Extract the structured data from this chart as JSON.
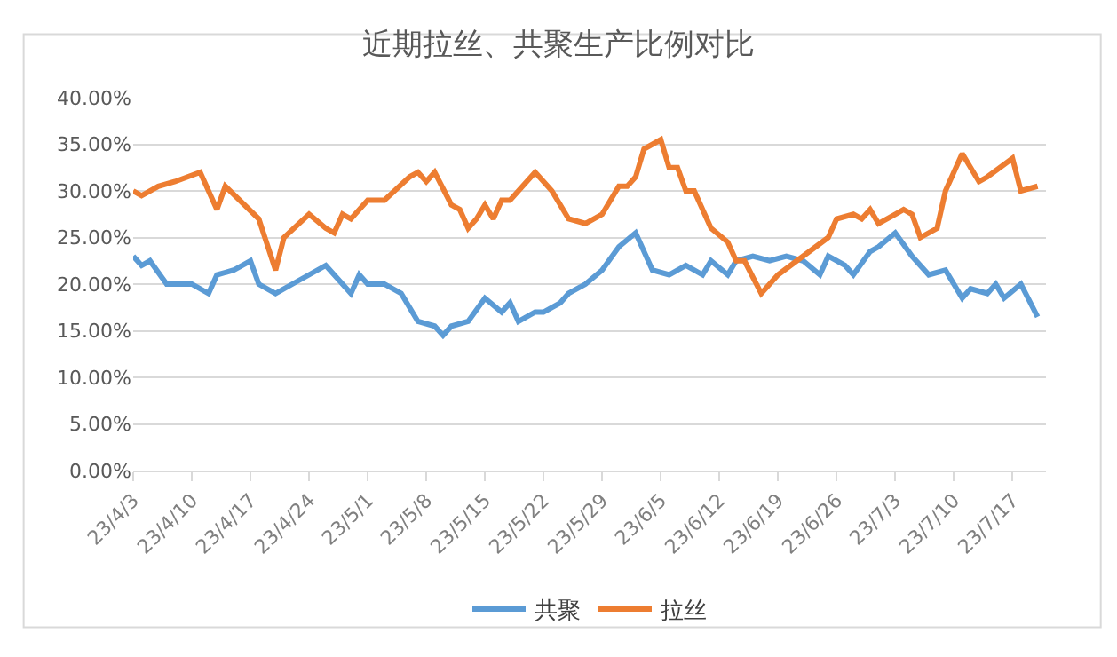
{
  "chart_data": {
    "type": "line",
    "title": "近期拉丝、共聚生产比例对比",
    "series": [
      {
        "name": "共聚",
        "color": "#5b9bd5",
        "x": [
          "--04-03",
          "--04-04",
          "--04-05",
          "--04-07",
          "--04-10",
          "--04-12",
          "--04-13",
          "--04-15",
          "--04-17",
          "--04-18",
          "--04-20",
          "--04-22",
          "--04-24",
          "--04-26",
          "--04-29",
          "--04-30",
          "--05-01",
          "--05-03",
          "--05-05",
          "--05-07",
          "--05-09",
          "--05-10",
          "--05-11",
          "--05-13",
          "--05-15",
          "--05-17",
          "--05-18",
          "--05-19",
          "--05-21",
          "--05-22",
          "--05-24",
          "--05-25",
          "--05-27",
          "--05-29",
          "--05-31",
          "--06-02",
          "--06-04",
          "--06-06",
          "--06-08",
          "--06-10",
          "--06-11",
          "--06-13",
          "--06-14",
          "--06-16",
          "--06-18",
          "--06-20",
          "--06-22",
          "--06-24",
          "--06-25",
          "--06-27",
          "--06-28",
          "--06-30",
          "--07-01",
          "--07-03",
          "--07-05",
          "--07-07",
          "--07-09",
          "--07-11",
          "--07-12",
          "--07-14",
          "--07-15",
          "--07-16",
          "--07-18",
          "--07-20"
        ],
        "values": [
          23,
          22,
          22.5,
          20,
          20,
          19,
          21,
          21.5,
          22.5,
          20,
          19,
          20,
          21,
          22,
          19,
          21,
          20,
          20,
          19,
          16,
          15.5,
          14.5,
          15.5,
          16,
          18.5,
          17,
          18,
          16,
          17,
          17,
          18,
          19,
          20,
          21.5,
          24,
          25.5,
          21.5,
          21,
          22,
          21,
          22.5,
          21,
          22.5,
          23,
          22.5,
          23,
          22.5,
          21,
          23,
          22,
          21,
          23.5,
          24,
          25.5,
          23,
          21,
          21.5,
          18.5,
          19.5,
          19,
          20,
          18.5,
          20,
          16.5
        ]
      },
      {
        "name": "拉丝",
        "color": "#ed7d31",
        "x": [
          "--04-03",
          "--04-04",
          "--04-06",
          "--04-08",
          "--04-11",
          "--04-13",
          "--04-14",
          "--04-18",
          "--04-20",
          "--04-21",
          "--04-24",
          "--04-26",
          "--04-27",
          "--04-28",
          "--04-29",
          "--05-01",
          "--05-03",
          "--05-06",
          "--05-07",
          "--05-08",
          "--05-09",
          "--05-11",
          "--05-12",
          "--05-13",
          "--05-14",
          "--05-15",
          "--05-16",
          "--05-17",
          "--05-18",
          "--05-20",
          "--05-21",
          "--05-23",
          "--05-25",
          "--05-27",
          "--05-29",
          "--05-31",
          "--06-01",
          "--06-02",
          "--06-03",
          "--06-05",
          "--06-06",
          "--06-07",
          "--06-08",
          "--06-09",
          "--06-11",
          "--06-13",
          "--06-14",
          "--06-15",
          "--06-17",
          "--06-19",
          "--06-22",
          "--06-25",
          "--06-26",
          "--06-28",
          "--06-29",
          "--06-30",
          "--07-01",
          "--07-03",
          "--07-04",
          "--07-05",
          "--07-06",
          "--07-08",
          "--07-09",
          "--07-11",
          "--07-13",
          "--07-14",
          "--07-17",
          "--07-18",
          "--07-20"
        ],
        "values": [
          30,
          29.5,
          30.5,
          31,
          32,
          28,
          30.5,
          27,
          21.5,
          25,
          27.5,
          26,
          25.5,
          27.5,
          27,
          29,
          29,
          31.5,
          32,
          31,
          32,
          28.5,
          28,
          26,
          27,
          28.5,
          27,
          29,
          29,
          31,
          32,
          30,
          27,
          26.5,
          27.5,
          30.5,
          30.5,
          31.5,
          34.5,
          35.5,
          32.5,
          32.5,
          30,
          30,
          26,
          24.5,
          22.5,
          22.5,
          19,
          21,
          23,
          25,
          27,
          27.5,
          27,
          28,
          26.5,
          27.5,
          28,
          27.5,
          25,
          26,
          30,
          34,
          31,
          31.5,
          33.5,
          30,
          30.5
        ]
      }
    ],
    "xlim": [
      "--04-03",
      "--07-21"
    ],
    "xticks": [
      {
        "value": "--04-03",
        "label": "23/4/3"
      },
      {
        "value": "--04-10",
        "label": "23/4/10"
      },
      {
        "value": "--04-17",
        "label": "23/4/17"
      },
      {
        "value": "--04-24",
        "label": "23/4/24"
      },
      {
        "value": "--05-01",
        "label": "23/5/1"
      },
      {
        "value": "--05-08",
        "label": "23/5/8"
      },
      {
        "value": "--05-15",
        "label": "23/5/15"
      },
      {
        "value": "--05-22",
        "label": "23/5/22"
      },
      {
        "value": "--05-29",
        "label": "23/5/29"
      },
      {
        "value": "--06-05",
        "label": "23/6/5"
      },
      {
        "value": "--06-12",
        "label": "23/6/12"
      },
      {
        "value": "--06-19",
        "label": "23/6/19"
      },
      {
        "value": "--06-26",
        "label": "23/6/26"
      },
      {
        "value": "--07-03",
        "label": "23/7/3"
      },
      {
        "value": "--07-10",
        "label": "23/7/10"
      },
      {
        "value": "--07-17",
        "label": "23/7/17"
      }
    ],
    "ylim": [
      0,
      40
    ],
    "yticks": [
      {
        "value": 0,
        "label": "0.00%"
      },
      {
        "value": 5,
        "label": "5.00%"
      },
      {
        "value": 10,
        "label": "10.00%"
      },
      {
        "value": 15,
        "label": "15.00%"
      },
      {
        "value": 20,
        "label": "20.00%"
      },
      {
        "value": 25,
        "label": "25.00%"
      },
      {
        "value": 30,
        "label": "30.00%"
      },
      {
        "value": 35,
        "label": "35.00%"
      },
      {
        "value": 40,
        "label": "40.00%"
      }
    ],
    "grid": "y",
    "legend": "bottom",
    "marker": "none",
    "line_style": "solid"
  }
}
